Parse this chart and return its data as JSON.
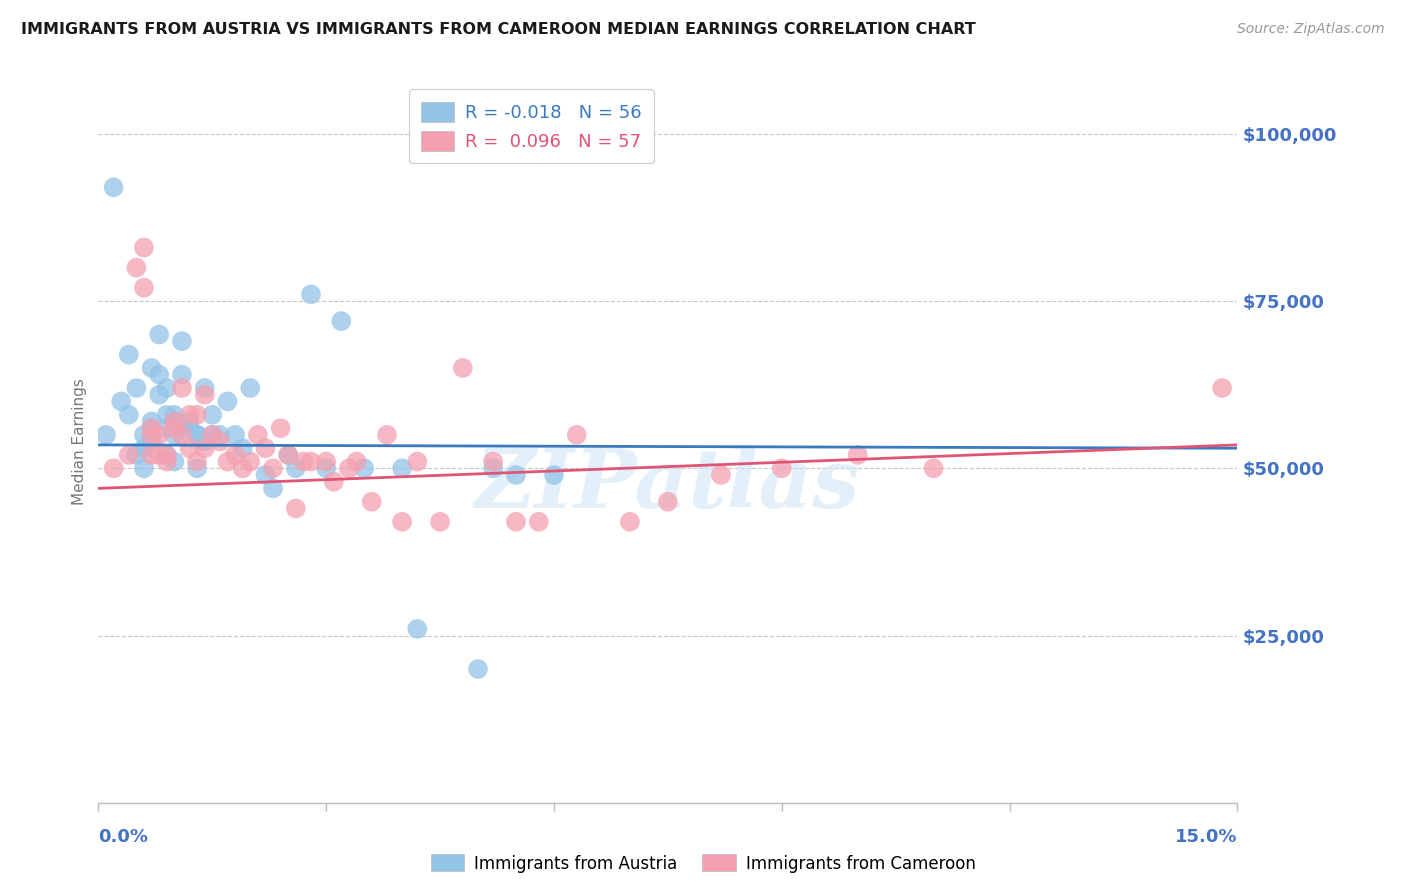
{
  "title": "IMMIGRANTS FROM AUSTRIA VS IMMIGRANTS FROM CAMEROON MEDIAN EARNINGS CORRELATION CHART",
  "source": "Source: ZipAtlas.com",
  "ylabel": "Median Earnings",
  "yticks": [
    0,
    25000,
    50000,
    75000,
    100000
  ],
  "ytick_labels": [
    "",
    "$25,000",
    "$50,000",
    "$75,000",
    "$100,000"
  ],
  "xlim": [
    0.0,
    0.15
  ],
  "ylim": [
    0,
    108000
  ],
  "austria_R": -0.018,
  "austria_N": 56,
  "cameroon_R": 0.096,
  "cameroon_N": 57,
  "austria_color": "#93c4e8",
  "cameroon_color": "#f4a0b0",
  "austria_line_color": "#3a7abf",
  "cameroon_line_color": "#e05575",
  "legend_label_austria": "Immigrants from Austria",
  "legend_label_cameroon": "Immigrants from Cameroon",
  "watermark": "ZIPatlas",
  "background_color": "#ffffff",
  "grid_color": "#c8c8c8",
  "title_color": "#1a1a1a",
  "axis_label_color": "#4472c4",
  "austria_x": [
    0.001,
    0.002,
    0.003,
    0.004,
    0.004,
    0.005,
    0.005,
    0.006,
    0.006,
    0.006,
    0.007,
    0.007,
    0.007,
    0.007,
    0.008,
    0.008,
    0.008,
    0.009,
    0.009,
    0.009,
    0.009,
    0.01,
    0.01,
    0.01,
    0.01,
    0.011,
    0.011,
    0.011,
    0.012,
    0.012,
    0.013,
    0.013,
    0.013,
    0.014,
    0.014,
    0.015,
    0.015,
    0.016,
    0.017,
    0.018,
    0.019,
    0.02,
    0.022,
    0.023,
    0.025,
    0.026,
    0.028,
    0.03,
    0.032,
    0.035,
    0.04,
    0.042,
    0.05,
    0.052,
    0.055,
    0.06
  ],
  "austria_y": [
    55000,
    92000,
    60000,
    67000,
    58000,
    52000,
    62000,
    55000,
    53000,
    50000,
    65000,
    57000,
    56000,
    54000,
    70000,
    64000,
    61000,
    52000,
    62000,
    58000,
    56000,
    55000,
    51000,
    58000,
    57000,
    64000,
    56000,
    69000,
    56000,
    57000,
    50000,
    55000,
    55000,
    54000,
    62000,
    55000,
    58000,
    55000,
    60000,
    55000,
    53000,
    62000,
    49000,
    47000,
    52000,
    50000,
    76000,
    50000,
    72000,
    50000,
    50000,
    26000,
    20000,
    50000,
    49000,
    49000
  ],
  "cameroon_x": [
    0.002,
    0.004,
    0.005,
    0.006,
    0.006,
    0.007,
    0.007,
    0.007,
    0.008,
    0.008,
    0.009,
    0.009,
    0.01,
    0.01,
    0.011,
    0.011,
    0.012,
    0.012,
    0.013,
    0.013,
    0.014,
    0.014,
    0.015,
    0.016,
    0.017,
    0.018,
    0.019,
    0.02,
    0.021,
    0.022,
    0.023,
    0.024,
    0.025,
    0.026,
    0.027,
    0.028,
    0.03,
    0.031,
    0.033,
    0.034,
    0.036,
    0.038,
    0.04,
    0.042,
    0.045,
    0.048,
    0.052,
    0.055,
    0.058,
    0.063,
    0.07,
    0.075,
    0.082,
    0.09,
    0.1,
    0.11,
    0.148
  ],
  "cameroon_y": [
    50000,
    52000,
    80000,
    83000,
    77000,
    52000,
    56000,
    55000,
    52000,
    55000,
    52000,
    51000,
    56000,
    57000,
    62000,
    55000,
    58000,
    53000,
    58000,
    51000,
    61000,
    53000,
    55000,
    54000,
    51000,
    52000,
    50000,
    51000,
    55000,
    53000,
    50000,
    56000,
    52000,
    44000,
    51000,
    51000,
    51000,
    48000,
    50000,
    51000,
    45000,
    55000,
    42000,
    51000,
    42000,
    65000,
    51000,
    42000,
    42000,
    55000,
    42000,
    45000,
    49000,
    50000,
    52000,
    50000,
    62000
  ]
}
